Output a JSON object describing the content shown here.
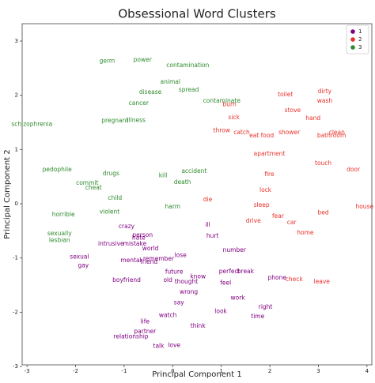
{
  "chart_data": {
    "type": "scatter",
    "title": "Obsessional Word Clusters",
    "x_label": "Principal Component 1",
    "y_label": "Principal Component 2",
    "xlim": [
      -3.1,
      4.1
    ],
    "ylim": [
      -2.97,
      3.32
    ],
    "xticks": [
      -3,
      -2,
      -1,
      0,
      1,
      2,
      3,
      4
    ],
    "yticks": [
      -3,
      -2,
      -1,
      0,
      1,
      2,
      3
    ],
    "legend": "upper right",
    "series": [
      {
        "name": "1",
        "color": "#800080",
        "x": [
          0.82,
          0.72,
          1.27,
          0.16,
          0.52,
          1.91,
          0.33,
          0.13,
          0.03,
          1.09,
          1.75,
          0.52,
          0.99,
          0.28,
          -0.95,
          -1.84,
          -1.92,
          -0.86,
          -0.57,
          -0.57,
          -0.49,
          -0.78,
          -0.95,
          -0.7,
          1.17,
          1.34,
          1.5,
          2.15,
          -0.1,
          -0.62,
          -1.27,
          -0.46,
          -0.86,
          0.03,
          -0.29,
          -0.1,
          -0.29
        ],
        "y": [
          -0.6,
          -0.39,
          -0.86,
          -0.95,
          -1.35,
          -1.91,
          -1.63,
          -1.83,
          -2.61,
          -1.46,
          -2.08,
          -2.26,
          -1.99,
          -1.44,
          -1.41,
          -1.14,
          -0.98,
          -2.45,
          -2.18,
          -2.36,
          -1.08,
          -0.74,
          -0.42,
          -0.63,
          -1.25,
          -1.74,
          -1.25,
          -1.37,
          -1.41,
          -0.58,
          -0.74,
          -0.83,
          -1.05,
          -1.26,
          -1.02,
          -2.06,
          -2.63
        ],
        "labels": [
          "hurt",
          "ill",
          "number",
          "lose",
          "know",
          "right",
          "wrong",
          "say",
          "love",
          "feel",
          "time",
          "think",
          "look",
          "thought",
          "boyfriend",
          "gay",
          "sexual",
          "relationship",
          "life",
          "partner",
          "friend",
          "mistake",
          "crazy",
          "hate",
          "perfect",
          "work",
          "break",
          "phone",
          "old",
          "person",
          "intrusive",
          "world",
          "mental",
          "future",
          "remember",
          "watch",
          "talk"
        ]
      },
      {
        "name": "2",
        "color": "#e8312a",
        "x": [
          1.26,
          3.13,
          3.13,
          2.32,
          2.89,
          3.38,
          3.1,
          3.72,
          3.95,
          1.99,
          1.91,
          0.72,
          2.45,
          3.07,
          2.5,
          2.4,
          3.1,
          1.01,
          1.42,
          1.83,
          1.83,
          1.66,
          2.17,
          2.73,
          3.27,
          1.99,
          2.47,
          1.17
        ],
        "y": [
          1.59,
          2.07,
          1.89,
          2.01,
          1.57,
          1.31,
          0.74,
          0.63,
          -0.06,
          0.54,
          0.25,
          0.07,
          -0.35,
          -1.44,
          -1.4,
          1.31,
          -0.17,
          1.35,
          1.31,
          1.25,
          -0.03,
          -0.32,
          -0.23,
          -0.54,
          1.25,
          0.92,
          1.72,
          1.83
        ],
        "labels": [
          "sick",
          "dirty",
          "wash",
          "toilet",
          "hand",
          "clean",
          "touch",
          "door",
          "house",
          "fire",
          "lock",
          "die",
          "car",
          "leave",
          "check",
          "shower",
          "bed",
          "throw",
          "catch",
          "eat food",
          "sleep",
          "drive",
          "fear",
          "home",
          "bathroom",
          "apartment",
          "stove",
          "burn"
        ]
      },
      {
        "name": "3",
        "color": "#2e8b2e",
        "x": [
          -1.35,
          -0.46,
          1.01,
          -0.75,
          -0.7,
          -2.38,
          -1.19,
          0.0,
          0.44,
          -0.2,
          -1.3,
          -2.25,
          -2.9,
          -1.19,
          0.33,
          0.31,
          0.2,
          -2.33,
          -2.33,
          -1.63,
          -1.76,
          -0.05,
          -1.27,
          -0.62
        ],
        "y": [
          2.63,
          2.05,
          1.89,
          1.54,
          1.85,
          0.63,
          0.1,
          -0.06,
          0.6,
          0.52,
          -0.15,
          -0.2,
          1.46,
          1.53,
          2.1,
          2.55,
          0.39,
          -0.55,
          -0.68,
          0.29,
          0.38,
          2.24,
          0.55,
          2.65
        ],
        "labels": [
          "germ",
          "disease",
          "contaminate",
          "illness",
          "cancer",
          "pedophile",
          "child",
          "harm",
          "accident",
          "kill",
          "violent",
          "horrible",
          "schizophrenia",
          "pregnant",
          "spread",
          "contamination",
          "death",
          "sexually",
          "lesbian",
          "cheat",
          "commit",
          "animal",
          "drugs",
          "power"
        ]
      }
    ]
  }
}
